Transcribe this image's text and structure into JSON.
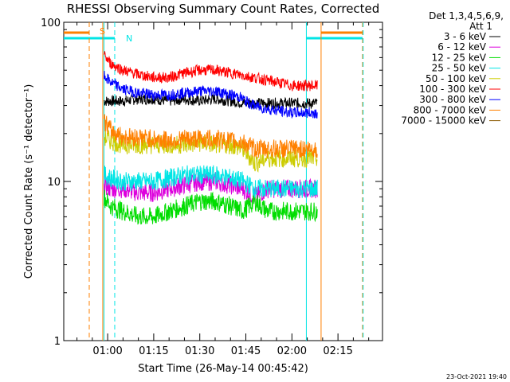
{
  "chart_data": {
    "type": "line",
    "title": "RHESSI Observing Summary Count Rates, Corrected",
    "ylabel": "Corrected Count Rate (s⁻¹ detector⁻¹)",
    "xlabel": "Start Time (26-May-14 00:45:42)",
    "ylim": [
      1,
      100
    ],
    "y_scale": "log",
    "y_ticks": [
      {
        "value": 1,
        "label": "1"
      },
      {
        "value": 10,
        "label": "10"
      },
      {
        "value": 100,
        "label": "100"
      }
    ],
    "x_ticks": [
      "01:00",
      "01:15",
      "01:30",
      "01:45",
      "02:00",
      "02:15"
    ],
    "x_tick_minutes": [
      60,
      75,
      90,
      105,
      120,
      135
    ],
    "xlim_minutes": [
      45.7,
      149.5
    ],
    "legend_header": [
      "Det 1,3,4,5,6,9,",
      "Att 1"
    ],
    "legend_position": "right",
    "series": [
      {
        "name": "3 - 6 keV",
        "color": "#000000",
        "x": [
          58.8,
          61,
          65,
          70,
          75,
          80,
          85,
          90,
          95,
          100,
          105,
          110,
          115,
          120,
          125,
          128.3
        ],
        "y": [
          32,
          32,
          32,
          33,
          33,
          32,
          33,
          32,
          33,
          32,
          31,
          31,
          31,
          31,
          31,
          31
        ]
      },
      {
        "name": "6 - 12 keV",
        "color": "#dd00dd",
        "x": [
          58.8,
          61,
          65,
          70,
          75,
          80,
          85,
          90,
          95,
          100,
          104,
          108,
          112,
          120,
          125,
          128.3
        ],
        "y": [
          9.5,
          9,
          9,
          8.5,
          8.5,
          9,
          9.5,
          10,
          10,
          9.5,
          9,
          8,
          9,
          9,
          9,
          9
        ]
      },
      {
        "name": "12 - 25 keV",
        "color": "#00dd00",
        "x": [
          58.8,
          61,
          65,
          70,
          75,
          80,
          85,
          90,
          95,
          100,
          104,
          108,
          112,
          120,
          125,
          128.3
        ],
        "y": [
          8,
          7,
          6.5,
          6,
          6,
          6.5,
          7,
          7.5,
          7.5,
          7,
          6.5,
          7.5,
          6.5,
          6.5,
          6.5,
          6.5
        ]
      },
      {
        "name": "25 - 50 keV",
        "color": "#00e5e5",
        "x": [
          58.8,
          61,
          65,
          70,
          75,
          80,
          85,
          90,
          95,
          100,
          104,
          108,
          112,
          120,
          125,
          128.3
        ],
        "y": [
          11,
          10.5,
          10,
          10,
          10,
          10.5,
          11,
          11,
          11,
          10.5,
          10,
          9,
          9,
          9,
          9,
          9
        ]
      },
      {
        "name": "50 - 100 keV",
        "color": "#cccc00",
        "x": [
          58.8,
          61,
          65,
          70,
          75,
          80,
          85,
          90,
          95,
          100,
          104,
          108,
          112,
          120,
          125,
          128.3
        ],
        "y": [
          19,
          18,
          17,
          17,
          17,
          17,
          17,
          17.5,
          17,
          17,
          16,
          13,
          14,
          14,
          14,
          14
        ]
      },
      {
        "name": "100 - 300 keV",
        "color": "#ff0000",
        "x": [
          58.8,
          61,
          65,
          70,
          75,
          80,
          85,
          90,
          95,
          100,
          105,
          110,
          115,
          120,
          125,
          128.3
        ],
        "y": [
          62,
          55,
          50,
          47,
          45,
          45,
          48,
          50,
          50,
          48,
          46,
          44,
          42,
          40,
          40,
          40
        ]
      },
      {
        "name": "300 - 800 keV",
        "color": "#0000ff",
        "x": [
          58.8,
          61,
          65,
          70,
          75,
          80,
          85,
          90,
          95,
          100,
          103,
          106,
          110,
          115,
          120,
          125,
          128.3
        ],
        "y": [
          46,
          42,
          38,
          36,
          35,
          35,
          36,
          37,
          37,
          35,
          34,
          31,
          29,
          28,
          27,
          27,
          27
        ]
      },
      {
        "name": "800 - 7000 keV",
        "color": "#ff8000",
        "x": [
          58.8,
          61,
          65,
          70,
          75,
          80,
          85,
          90,
          95,
          100,
          104,
          108,
          112,
          120,
          125,
          128.3
        ],
        "y": [
          24,
          21,
          19,
          19,
          18.5,
          18,
          18.5,
          18.5,
          18.5,
          18,
          17.5,
          16,
          16,
          16,
          16,
          16
        ]
      },
      {
        "name": "7000 - 15000 keV",
        "color": "#8b5a00",
        "x": [],
        "y": []
      }
    ],
    "annotations": [
      {
        "text": "S",
        "color": "#ff8000"
      },
      {
        "text": "N",
        "color": "#00e5e5"
      }
    ],
    "footer": "23-Oct-2021 19:40"
  }
}
